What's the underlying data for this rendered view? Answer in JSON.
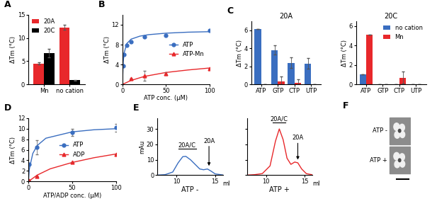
{
  "chart_data": [
    {
      "panel_label": "A",
      "type": "bar",
      "categories": [
        "Mn",
        "no cation"
      ],
      "series": [
        {
          "name": "20A",
          "color": "#e8282b",
          "values": [
            4.5,
            12.3
          ],
          "errors": [
            0.25,
            0.5
          ]
        },
        {
          "name": "20C",
          "color": "#000000",
          "values": [
            6.8,
            0.9
          ],
          "errors": [
            0.9,
            0.1
          ]
        }
      ],
      "ylabel": "ΔTm (°C)",
      "ylim": [
        0,
        15
      ],
      "yticks": [
        0,
        5,
        10,
        15
      ],
      "legend": "upper left"
    },
    {
      "panel_label": "B",
      "type": "scatter",
      "series": [
        {
          "name": "ATP",
          "color": "#3a6ec0",
          "marker": "o",
          "x": [
            1,
            2,
            5,
            10,
            25,
            50,
            100
          ],
          "values": [
            3.7,
            6.0,
            7.8,
            8.6,
            9.6,
            9.8,
            10.8
          ],
          "errors": [
            0,
            0,
            0,
            0,
            0,
            0,
            0
          ],
          "fit_x": [
            0,
            1,
            2,
            5,
            10,
            20,
            30,
            50,
            75,
            100
          ],
          "fit_values": [
            0,
            4.5,
            6.3,
            8.2,
            9.1,
            9.7,
            10.0,
            10.3,
            10.5,
            10.6
          ]
        },
        {
          "name": "ATP-Mn",
          "color": "#e8282b",
          "marker": "^",
          "x": [
            10,
            25,
            50,
            100
          ],
          "values": [
            1.1,
            1.7,
            2.2,
            3.2
          ],
          "errors": [
            0,
            1.0,
            0.3,
            0
          ],
          "fit_x": [
            0,
            10,
            25,
            50,
            75,
            100
          ],
          "fit_values": [
            0,
            0.8,
            1.6,
            2.4,
            2.9,
            3.3
          ]
        }
      ],
      "xlabel": "ATP conc. (μM)",
      "ylabel": "ΔTm (°C)",
      "xlim": [
        0,
        100
      ],
      "xticks": [
        0,
        50,
        100
      ],
      "ylim": [
        0,
        14
      ],
      "yticks": [
        0,
        4,
        8,
        12
      ],
      "legend": "center right"
    },
    {
      "panel_label": "C",
      "type": "bar",
      "title": "20A",
      "categories": [
        "ATP",
        "GTP",
        "CTP",
        "UTP"
      ],
      "series": [
        {
          "name": "no cation",
          "color": "#3a6ec0",
          "values": [
            6.1,
            3.8,
            2.4,
            2.3
          ],
          "errors": [
            0,
            0.5,
            0.6,
            0.6
          ]
        },
        {
          "name": "Mn",
          "color": "#e8282b",
          "values": [
            0,
            0.3,
            0.2,
            0
          ],
          "errors": [
            0,
            0.6,
            0.4,
            0
          ]
        }
      ],
      "ylabel": "ΔTm (°C)",
      "ylim": [
        0,
        7
      ],
      "yticks": [
        0,
        2,
        4,
        6
      ]
    },
    {
      "type": "bar",
      "title": "20C",
      "categories": [
        "ATP",
        "GTP",
        "CTP",
        "UTP"
      ],
      "series": [
        {
          "name": "no cation",
          "color": "#3a6ec0",
          "values": [
            1.0,
            0,
            0,
            0
          ],
          "errors": [
            0,
            0,
            0,
            0
          ]
        },
        {
          "name": "Mn",
          "color": "#e8282b",
          "values": [
            5.1,
            0,
            0.7,
            0
          ],
          "errors": [
            0,
            0,
            0.6,
            0
          ]
        }
      ],
      "ylabel": "ΔTm (°C)",
      "ylim": [
        0,
        6.5
      ],
      "yticks": [
        0,
        2,
        4,
        6
      ],
      "legend": "upper right"
    },
    {
      "panel_label": "D",
      "type": "scatter",
      "series": [
        {
          "name": "ATP",
          "color": "#3a6ec0",
          "marker": "o",
          "x": [
            1,
            10,
            50,
            100
          ],
          "values": [
            3.2,
            6.5,
            9.3,
            10.2
          ],
          "errors": [
            0,
            1.3,
            0.7,
            0.7
          ],
          "fit_x": [
            0,
            1,
            5,
            10,
            20,
            50,
            75,
            100
          ],
          "fit_values": [
            0,
            2.3,
            5.3,
            6.8,
            8.2,
            9.4,
            9.8,
            10.0
          ]
        },
        {
          "name": "ADP",
          "color": "#e8282b",
          "marker": "^",
          "x": [
            1,
            10,
            50,
            100
          ],
          "values": [
            0.2,
            1.0,
            3.7,
            5.2
          ],
          "errors": [
            0,
            0,
            0,
            0
          ],
          "fit_x": [
            0,
            10,
            25,
            50,
            75,
            100
          ],
          "fit_values": [
            0,
            1.2,
            2.4,
            3.6,
            4.5,
            5.2
          ]
        }
      ],
      "xlabel": "ATP/ADP conc. (μM)",
      "ylabel": "ΔTm (°C)",
      "xlim": [
        0,
        100
      ],
      "xticks": [
        0,
        50,
        100
      ],
      "ylim": [
        0,
        12
      ],
      "yticks": [
        0,
        2,
        4,
        6,
        8,
        10,
        12
      ],
      "legend": "center"
    },
    {
      "panel_label": "E",
      "type": "line",
      "title": "ATP -",
      "xlabel": "ml",
      "ylabel": "mAu",
      "color": "#3a6ec0",
      "x": [
        7.5,
        8.5,
        9.5,
        10.2,
        10.8,
        11.2,
        11.8,
        12.5,
        13.0,
        13.5,
        14.0,
        14.5,
        15,
        16
      ],
      "values": [
        0,
        0.3,
        2,
        8,
        12,
        12.2,
        10,
        6.5,
        4,
        3.5,
        4,
        2.5,
        0.8,
        0.1
      ],
      "xlim": [
        7.5,
        16
      ],
      "xticks": [
        10,
        15
      ],
      "ylim": [
        0,
        37
      ],
      "yticks": [
        0,
        10,
        20,
        30
      ],
      "annotations": [
        {
          "text": "20A/C",
          "x": [
            10.2,
            12.5
          ],
          "y": 17
        },
        {
          "text": "20A",
          "x": 14.2,
          "y": 20,
          "arrow_to": 6
        }
      ]
    },
    {
      "type": "line",
      "title": "ATP +",
      "xlabel": "ml",
      "color": "#e8282b",
      "x": [
        7.5,
        8.5,
        9.5,
        10.5,
        11.2,
        11.7,
        12.2,
        12.7,
        13.2,
        13.7,
        14.1,
        14.6,
        15.2,
        16
      ],
      "values": [
        0,
        0.3,
        1,
        6,
        22,
        30,
        23,
        11,
        7,
        8.5,
        8,
        4,
        1,
        0.2
      ],
      "xlim": [
        7.5,
        16
      ],
      "xticks": [
        10,
        15
      ],
      "ylim": [
        0,
        37
      ],
      "yticks": [
        0,
        10,
        20,
        30
      ],
      "tick_labels": "x",
      "annotations": [
        {
          "text": "20A/C",
          "x": [
            10.8,
            12.5
          ],
          "y": 34
        },
        {
          "text": "20A",
          "x": 14.1,
          "y": 22,
          "arrow_to": 10
        }
      ]
    },
    {
      "panel_label": "F",
      "type": "image",
      "labels": [
        "ATP -",
        "ATP +"
      ]
    }
  ]
}
